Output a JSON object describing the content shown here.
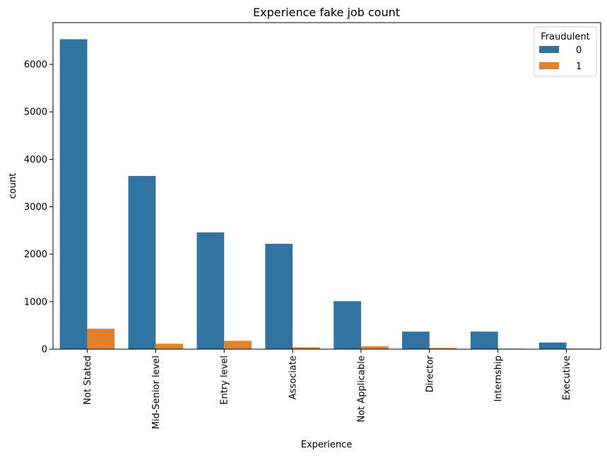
{
  "chart_data": {
    "type": "bar",
    "title": "Experience fake job count",
    "xlabel": "Experience",
    "ylabel": "count",
    "categories": [
      "Not Stated",
      "Mid-Senior level",
      "Entry level",
      "Associate",
      "Not Applicable",
      "Director",
      "Internship",
      "Executive"
    ],
    "series": [
      {
        "name": "0",
        "color": "#3274a1",
        "values": [
          6530,
          3650,
          2460,
          2220,
          1010,
          370,
          370,
          140
        ]
      },
      {
        "name": "1",
        "color": "#e1812c",
        "values": [
          430,
          115,
          175,
          40,
          60,
          25,
          10,
          10
        ]
      }
    ],
    "ylim": [
      0,
      6880
    ],
    "yticks": [
      0,
      1000,
      2000,
      3000,
      4000,
      5000,
      6000
    ],
    "legend": {
      "title": "Fraudulent",
      "placement": "top-right"
    },
    "grid": false
  }
}
